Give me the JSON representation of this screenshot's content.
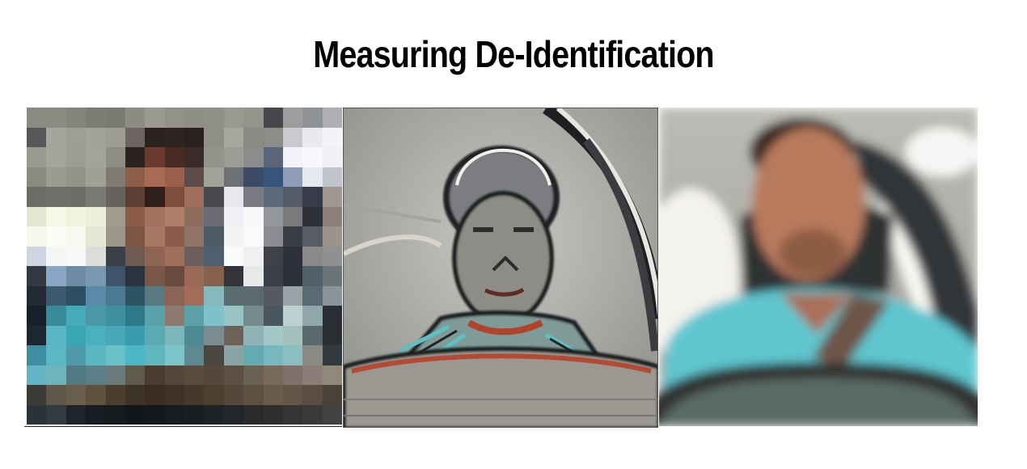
{
  "title": "Measuring De-Identification",
  "panels": [
    {
      "style": "pixelated"
    },
    {
      "style": "edge-enhanced"
    },
    {
      "style": "blurred"
    }
  ],
  "colors": {
    "shirt": "#5fc6cf",
    "skin": "#a86b55",
    "hair": "#3a2a24",
    "interior": "#8a8c8a",
    "background": "#ffffff"
  }
}
